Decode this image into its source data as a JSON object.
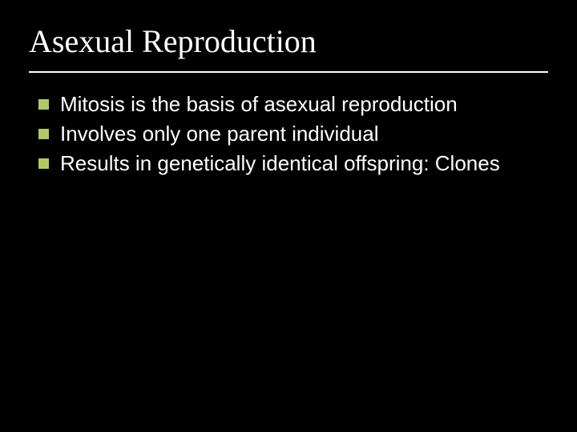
{
  "slide": {
    "background_color": "#000000",
    "title": {
      "text": "Asexual Reproduction",
      "font_family": "Times New Roman",
      "font_size": 40,
      "color": "#ffffff",
      "underline_color": "#ffffff",
      "underline_thickness": 2
    },
    "bullet_marker": {
      "shape": "square",
      "size": 13,
      "color": "#b2c866"
    },
    "body_text": {
      "font_family": "Arial",
      "font_size": 26,
      "color": "#ffffff",
      "line_height": 1.35
    },
    "bullets": [
      {
        "text": "Mitosis is the basis of asexual reproduction"
      },
      {
        "text": "Involves only one parent individual"
      },
      {
        "text": "Results in genetically identical offspring: Clones"
      }
    ]
  }
}
